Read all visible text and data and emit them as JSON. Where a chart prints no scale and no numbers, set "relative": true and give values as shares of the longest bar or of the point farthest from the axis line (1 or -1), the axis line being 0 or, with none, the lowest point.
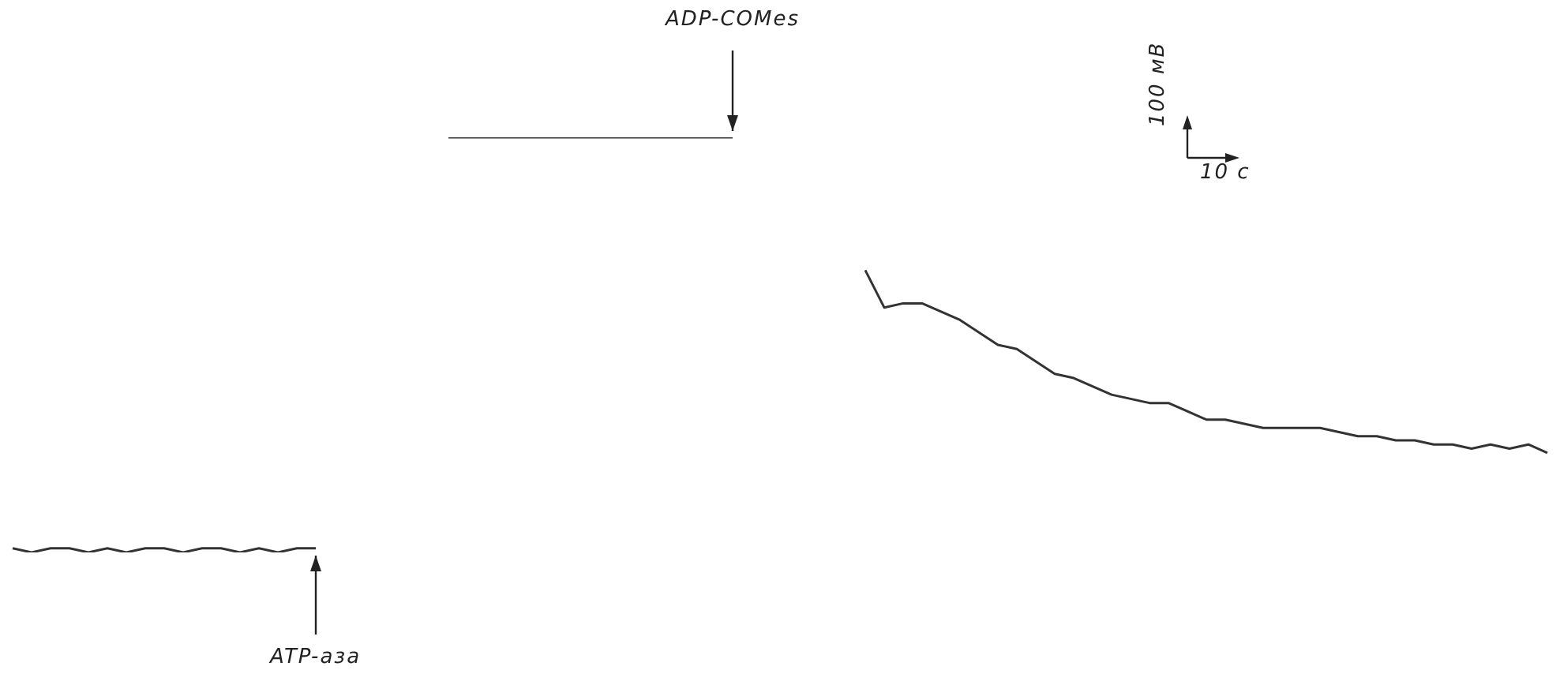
{
  "chart_data": {
    "type": "line",
    "relative": true,
    "categories": [
      null,
      null,
      null,
      null,
      null,
      null,
      null,
      null,
      null,
      null,
      null,
      null,
      null,
      null,
      null,
      null,
      null,
      null,
      null,
      null,
      null,
      null,
      null,
      null,
      null,
      null,
      null,
      null,
      null,
      null,
      null,
      null,
      null,
      null,
      null,
      null,
      null,
      null,
      null,
      null,
      null,
      null,
      null,
      null,
      null,
      null,
      null,
      null,
      null,
      null,
      null,
      null,
      null,
      null,
      null,
      null,
      null,
      null,
      null,
      null,
      null,
      null,
      null,
      null,
      null,
      null,
      null,
      null,
      null,
      null,
      null,
      null,
      null,
      null,
      null,
      null,
      null,
      null,
      null,
      null,
      null,
      null
    ],
    "series": [
      {
        "color": "#333333",
        "values": [
          0.01,
          0,
          0.01,
          0.01,
          0,
          0.01,
          0,
          0.01,
          0.01,
          0,
          0.01,
          0.01,
          0,
          0.01,
          0,
          0.01,
          0.01,
          null,
          null,
          null,
          null,
          null,
          null,
          null,
          null,
          null,
          null,
          null,
          null,
          null,
          null,
          null,
          null,
          null,
          null,
          null,
          null,
          null,
          null,
          null,
          null,
          null,
          null,
          null,
          null,
          null,
          null,
          null,
          null,
          null,
          null,
          null,
          null,
          null,
          null,
          null,
          null,
          null,
          null,
          null,
          null,
          null,
          null,
          null,
          null,
          null,
          null,
          null,
          null,
          null,
          null,
          null,
          null,
          null,
          null,
          null,
          null,
          null,
          null,
          null,
          null,
          null
        ]
      },
      {
        "color": "#333333",
        "values": [
          null,
          null,
          null,
          null,
          null,
          null,
          null,
          null,
          null,
          null,
          null,
          null,
          null,
          null,
          null,
          null,
          null,
          null,
          null,
          null,
          null,
          null,
          null,
          1,
          1,
          1,
          1,
          1,
          1,
          1,
          1,
          1,
          1,
          1,
          1,
          1,
          1,
          1,
          1,
          null,
          null,
          null,
          null,
          null,
          null,
          null,
          null,
          null,
          null,
          null,
          null,
          null,
          null,
          null,
          null,
          null,
          null,
          null,
          null,
          null,
          null,
          null,
          null,
          null,
          null,
          null,
          null,
          null,
          null,
          null,
          null,
          null,
          null,
          null,
          null,
          null,
          null,
          null,
          null,
          null,
          null,
          null
        ]
      },
      {
        "color": "#333333",
        "values": [
          null,
          null,
          null,
          null,
          null,
          null,
          null,
          null,
          null,
          null,
          null,
          null,
          null,
          null,
          null,
          null,
          null,
          null,
          null,
          null,
          null,
          null,
          null,
          null,
          null,
          null,
          null,
          null,
          null,
          null,
          null,
          null,
          null,
          null,
          null,
          null,
          null,
          null,
          null,
          null,
          null,
          null,
          null,
          null,
          null,
          0.68,
          0.59,
          0.6,
          0.6,
          0.58,
          0.56,
          0.53,
          0.5,
          0.49,
          0.46,
          0.43,
          0.42,
          0.4,
          0.38,
          0.37,
          0.36,
          0.36,
          0.34,
          0.32,
          0.32,
          0.31,
          0.3,
          0.3,
          0.3,
          0.3,
          0.29,
          0.28,
          0.28,
          0.27,
          0.27,
          0.26,
          0.26,
          0.25,
          0.26,
          0.25,
          0.26,
          0.24
        ]
      }
    ],
    "annotations": [
      "ADP-COMes",
      "ATP-аза",
      "100 мВ",
      "10 с"
    ]
  }
}
